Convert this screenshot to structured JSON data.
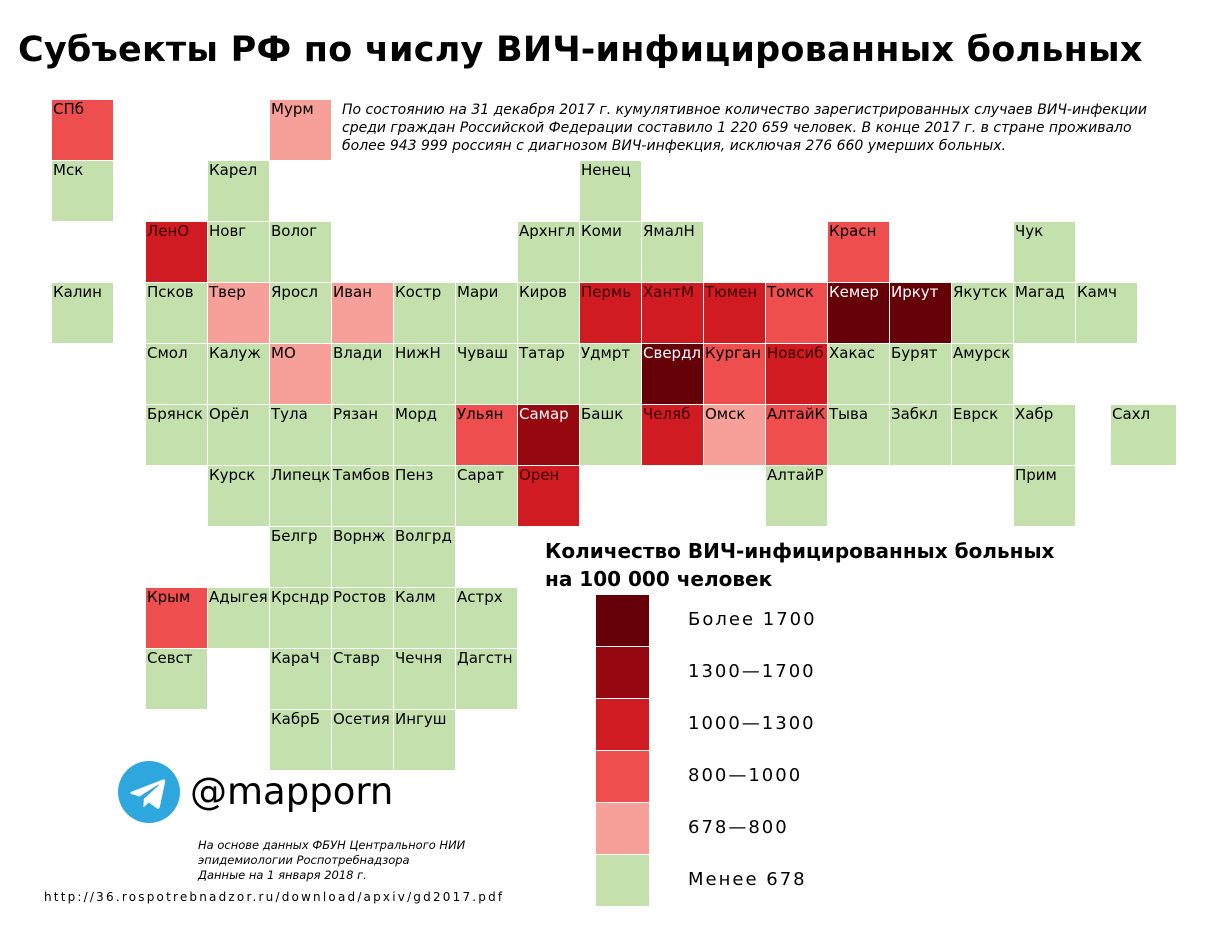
{
  "title": "Субъекты РФ по числу ВИЧ-инфицированных больных",
  "intro": "По состоянию на 31 декабря 2017 г. кумулятивное количество зарегистрированных  случаев  ВИЧ-инфекции  среди  граждан Российской  Федерации составило 1  220  659 человек. В конце 2017 г. в стране проживало более 943 999 россиян с диагнозом ВИЧ-инфекция, исключая 276 660 умерших больных.",
  "legend": {
    "title_lines": [
      "Количество ВИЧ-инфицированных больных",
      "на 100 000 человек"
    ],
    "items": [
      {
        "key": "c5",
        "label": "Более 1700",
        "color": "#650008"
      },
      {
        "key": "c4",
        "label": "1300—1700",
        "color": "#950810"
      },
      {
        "key": "c3",
        "label": "1000—1300",
        "color": "#cf1b21"
      },
      {
        "key": "c2",
        "label": "800—1000",
        "color": "#ee4e4d"
      },
      {
        "key": "c1",
        "label": "678—800",
        "color": "#f7a09a"
      },
      {
        "key": "c0",
        "label": "Менее 678",
        "color": "#c3e0ad"
      }
    ]
  },
  "regions": [
    {
      "name": "СПб",
      "cls": "c2"
    },
    {
      "name": "Мурм",
      "cls": "c1"
    },
    {
      "name": "Мск",
      "cls": "c0"
    },
    {
      "name": "Карел",
      "cls": "c0"
    },
    {
      "name": "Ненец",
      "cls": "c0"
    },
    {
      "name": "ЛенО",
      "cls": "c3"
    },
    {
      "name": "Новг",
      "cls": "c0"
    },
    {
      "name": "Волог",
      "cls": "c0"
    },
    {
      "name": "Архнгл",
      "cls": "c0"
    },
    {
      "name": "Коми",
      "cls": "c0"
    },
    {
      "name": "ЯмалН",
      "cls": "c0"
    },
    {
      "name": "Красн",
      "cls": "c2"
    },
    {
      "name": "Чук",
      "cls": "c0"
    },
    {
      "name": "Калин",
      "cls": "c0"
    },
    {
      "name": "Псков",
      "cls": "c0"
    },
    {
      "name": "Твер",
      "cls": "c1"
    },
    {
      "name": "Яросл",
      "cls": "c0"
    },
    {
      "name": "Иван",
      "cls": "c1"
    },
    {
      "name": "Костр",
      "cls": "c0"
    },
    {
      "name": "Мари",
      "cls": "c0"
    },
    {
      "name": "Киров",
      "cls": "c0"
    },
    {
      "name": "Пермь",
      "cls": "c3"
    },
    {
      "name": "ХантМ",
      "cls": "c3"
    },
    {
      "name": "Тюмен",
      "cls": "c3"
    },
    {
      "name": "Томск",
      "cls": "c2"
    },
    {
      "name": "Кемер",
      "cls": "c5"
    },
    {
      "name": "Иркут",
      "cls": "c5"
    },
    {
      "name": "Якутск",
      "cls": "c0"
    },
    {
      "name": "Магад",
      "cls": "c0"
    },
    {
      "name": "Камч",
      "cls": "c0"
    },
    {
      "name": "Смол",
      "cls": "c0"
    },
    {
      "name": "Калуж",
      "cls": "c0"
    },
    {
      "name": "МО",
      "cls": "c1"
    },
    {
      "name": "Влади",
      "cls": "c0"
    },
    {
      "name": "НижН",
      "cls": "c0"
    },
    {
      "name": "Чуваш",
      "cls": "c0"
    },
    {
      "name": "Татар",
      "cls": "c0"
    },
    {
      "name": "Удмрт",
      "cls": "c0"
    },
    {
      "name": "Свердл",
      "cls": "c5"
    },
    {
      "name": "Курган",
      "cls": "c2"
    },
    {
      "name": "Новсиб",
      "cls": "c3"
    },
    {
      "name": "Хакас",
      "cls": "c0"
    },
    {
      "name": "Бурят",
      "cls": "c0"
    },
    {
      "name": "Амурск",
      "cls": "c0"
    },
    {
      "name": "Брянск",
      "cls": "c0"
    },
    {
      "name": "Орёл",
      "cls": "c0"
    },
    {
      "name": "Тула",
      "cls": "c0"
    },
    {
      "name": "Рязан",
      "cls": "c0"
    },
    {
      "name": "Морд",
      "cls": "c0"
    },
    {
      "name": "Ульян",
      "cls": "c2"
    },
    {
      "name": "Самар",
      "cls": "c4"
    },
    {
      "name": "Башк",
      "cls": "c0"
    },
    {
      "name": "Челяб",
      "cls": "c3"
    },
    {
      "name": "Омск",
      "cls": "c1"
    },
    {
      "name": "АлтайК",
      "cls": "c2"
    },
    {
      "name": "Тыва",
      "cls": "c0"
    },
    {
      "name": "Забкл",
      "cls": "c0"
    },
    {
      "name": "Еврск",
      "cls": "c0"
    },
    {
      "name": "Хабр",
      "cls": "c0"
    },
    {
      "name": "Сахл",
      "cls": "c0"
    },
    {
      "name": "Курск",
      "cls": "c0"
    },
    {
      "name": "Липецк",
      "cls": "c0"
    },
    {
      "name": "Тамбов",
      "cls": "c0"
    },
    {
      "name": "Пенз",
      "cls": "c0"
    },
    {
      "name": "Сарат",
      "cls": "c0"
    },
    {
      "name": "Орен",
      "cls": "c3"
    },
    {
      "name": "АлтайР",
      "cls": "c0"
    },
    {
      "name": "Прим",
      "cls": "c0"
    },
    {
      "name": "Белгр",
      "cls": "c0"
    },
    {
      "name": "Ворнж",
      "cls": "c0"
    },
    {
      "name": "Волгрд",
      "cls": "c0"
    },
    {
      "name": "Крым",
      "cls": "c2"
    },
    {
      "name": "Адыгея",
      "cls": "c0"
    },
    {
      "name": "Крсндр",
      "cls": "c0"
    },
    {
      "name": "Ростов",
      "cls": "c0"
    },
    {
      "name": "Калм",
      "cls": "c0"
    },
    {
      "name": "Астрх",
      "cls": "c0"
    },
    {
      "name": "Севст",
      "cls": "c0"
    },
    {
      "name": "КараЧ",
      "cls": "c0"
    },
    {
      "name": "Ставр",
      "cls": "c0"
    },
    {
      "name": "Чечня",
      "cls": "c0"
    },
    {
      "name": "Дагстн",
      "cls": "c0"
    },
    {
      "name": "КабрБ",
      "cls": "c0"
    },
    {
      "name": "Осетия",
      "cls": "c0"
    },
    {
      "name": "Ингуш",
      "cls": "c0"
    }
  ],
  "telegram": {
    "handle": "@mapporn",
    "icon": "telegram-icon"
  },
  "source_lines": [
    "На основе данных ФБУН Центрального НИИ",
    "эпидемиологии Роспотребнадзора",
    "Данные на 1 января 2018 г."
  ],
  "url": "http://36.rospotrebnadzor.ru/download/apxiv/gd2017.pdf"
}
